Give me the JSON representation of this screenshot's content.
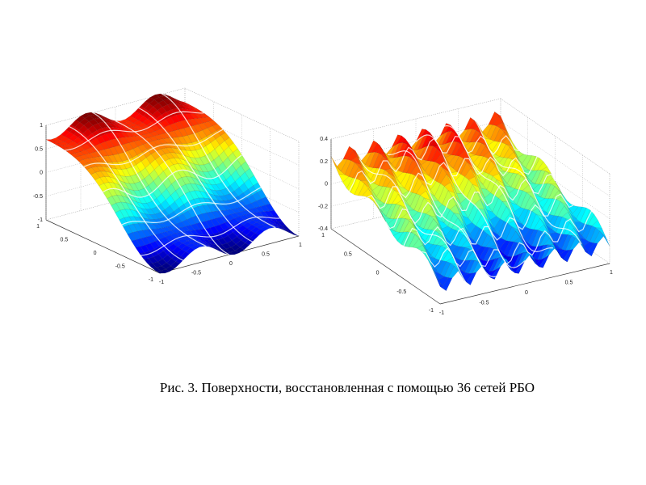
{
  "caption": "Рис. 3. Поверхности, восстановленная с помощью 36 сетей РБО",
  "chart_data": [
    {
      "type": "surface",
      "title": "",
      "colormap": "jet",
      "xlim": [
        -1,
        1
      ],
      "ylim": [
        -1,
        1
      ],
      "zlim": [
        -1,
        1
      ],
      "x_ticks": [
        "-1",
        "-0.5",
        "0",
        "0.5",
        "1"
      ],
      "y_ticks": [
        "-1",
        "-0.5",
        "0",
        "0.5",
        "1"
      ],
      "z_ticks": [
        "-1",
        "-0.5",
        "0",
        "0.5",
        "1"
      ],
      "grid": true
    },
    {
      "type": "surface",
      "title": "",
      "colormap": "jet",
      "xlim": [
        -1,
        1
      ],
      "ylim": [
        -1,
        1
      ],
      "zlim": [
        -0.4,
        0.4
      ],
      "x_ticks": [
        "-1",
        "-0.5",
        "0",
        "0.5",
        "1"
      ],
      "y_ticks": [
        "-1",
        "-0.5",
        "0",
        "0.5",
        "1"
      ],
      "z_ticks": [
        "-0.4",
        "-0.2",
        "0",
        "0.2",
        "0.4"
      ],
      "grid": true
    }
  ]
}
